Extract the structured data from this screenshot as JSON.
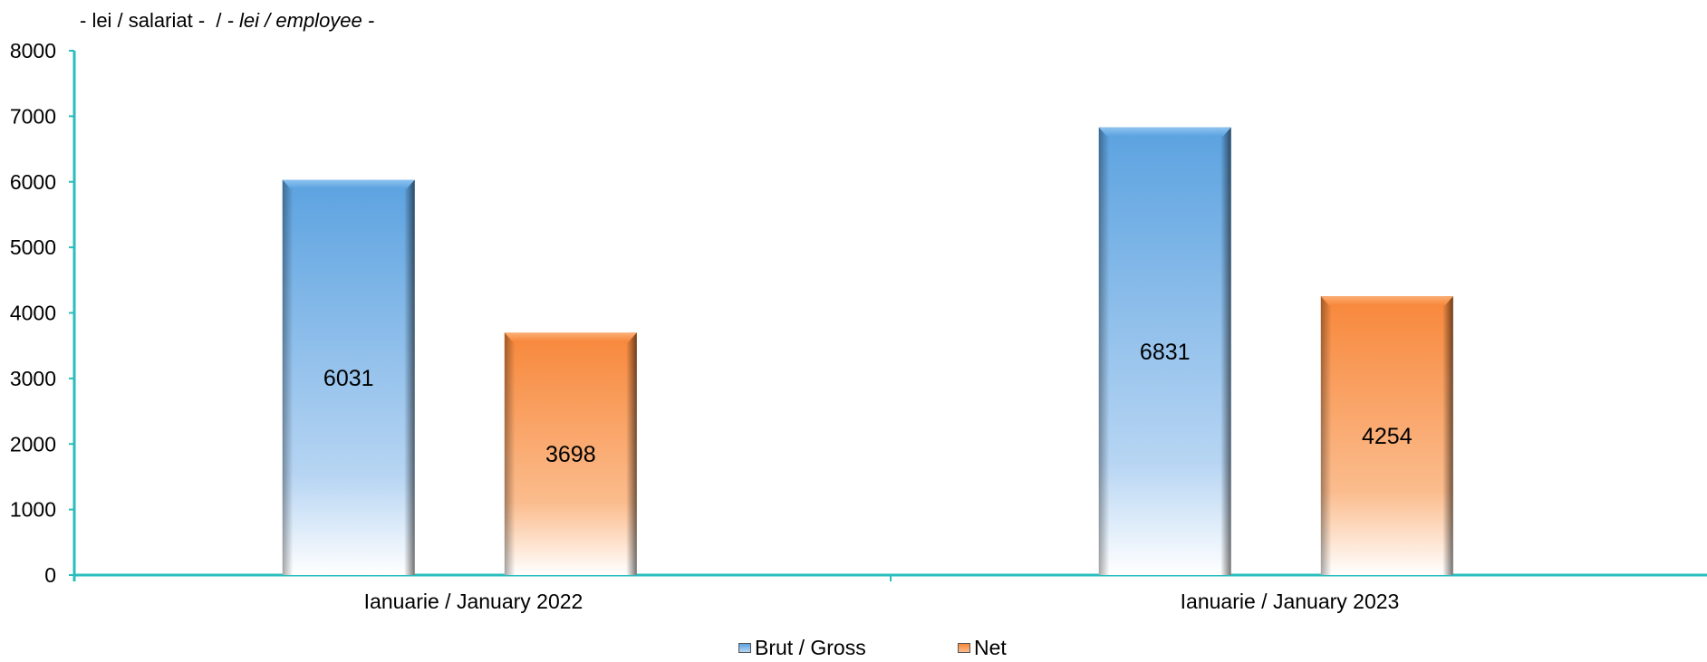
{
  "header": {
    "unit_ro": "- lei / salariat -  / ",
    "unit_en": "- lei / employee -"
  },
  "colors": {
    "axis": "#29BDBD",
    "gross_top": "#5BA2E0",
    "gross_bottom": "#FFFFFF",
    "net_top": "#F7873A",
    "net_bottom": "#FFFFFF"
  },
  "chart_data": {
    "type": "bar",
    "categories": [
      "Ianuarie / January 2022",
      "Ianuarie / January 2023"
    ],
    "series": [
      {
        "name": "Brut / Gross",
        "values": [
          6031,
          6831
        ]
      },
      {
        "name": "Net",
        "values": [
          3698,
          4254
        ]
      }
    ],
    "ylim": [
      0,
      8000
    ],
    "yticks": [
      0,
      1000,
      2000,
      3000,
      4000,
      5000,
      6000,
      7000,
      8000
    ],
    "legend": "bottom",
    "grid": false
  },
  "legend": {
    "gross_label": "Brut / Gross",
    "net_label": "Net"
  }
}
